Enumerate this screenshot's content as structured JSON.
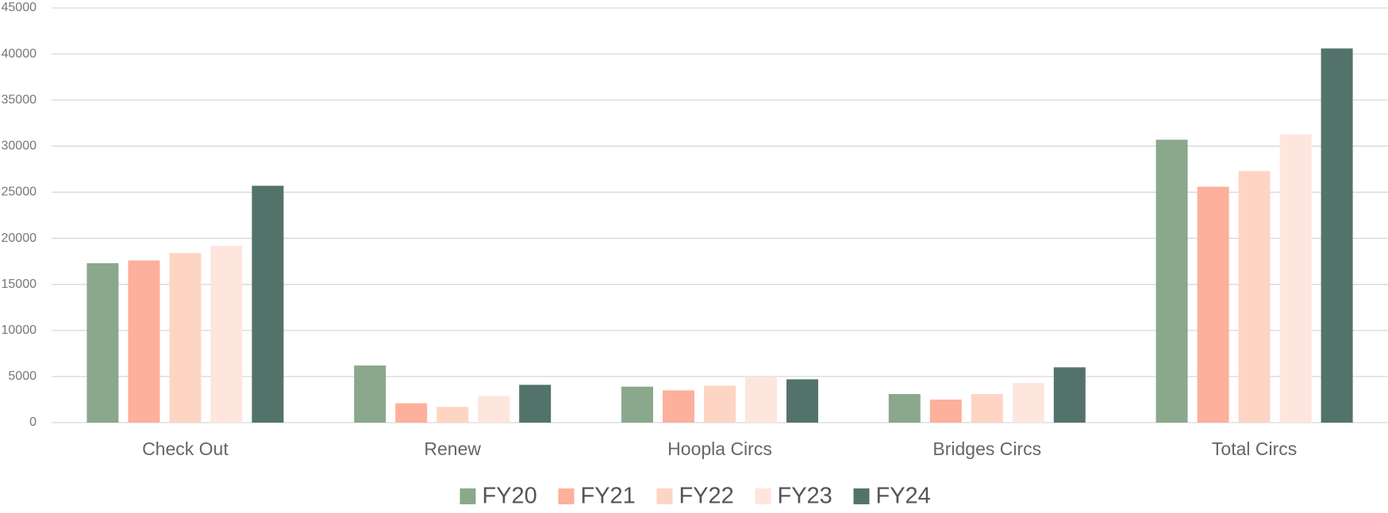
{
  "chart_data": {
    "type": "bar",
    "categories": [
      "Check Out",
      "Renew",
      "Hoopla Circs",
      "Bridges Circs",
      "Total Circs"
    ],
    "series": [
      {
        "name": "FY20",
        "color": "#8aa88c",
        "values": [
          17300,
          6200,
          3900,
          3100,
          30700
        ]
      },
      {
        "name": "FY21",
        "color": "#fdb09c",
        "values": [
          17600,
          2100,
          3500,
          2500,
          25600
        ]
      },
      {
        "name": "FY22",
        "color": "#fed5c5",
        "values": [
          18400,
          1700,
          4000,
          3100,
          27300
        ]
      },
      {
        "name": "FY23",
        "color": "#fee6de",
        "values": [
          19200,
          2900,
          5000,
          4300,
          31300
        ]
      },
      {
        "name": "FY24",
        "color": "#53736a",
        "values": [
          25700,
          4100,
          4700,
          6000,
          40600
        ]
      }
    ],
    "ylim": [
      0,
      45000
    ],
    "yticks": [
      0,
      5000,
      10000,
      15000,
      20000,
      25000,
      30000,
      35000,
      40000,
      45000
    ],
    "grid": true,
    "legend": "bottom"
  }
}
